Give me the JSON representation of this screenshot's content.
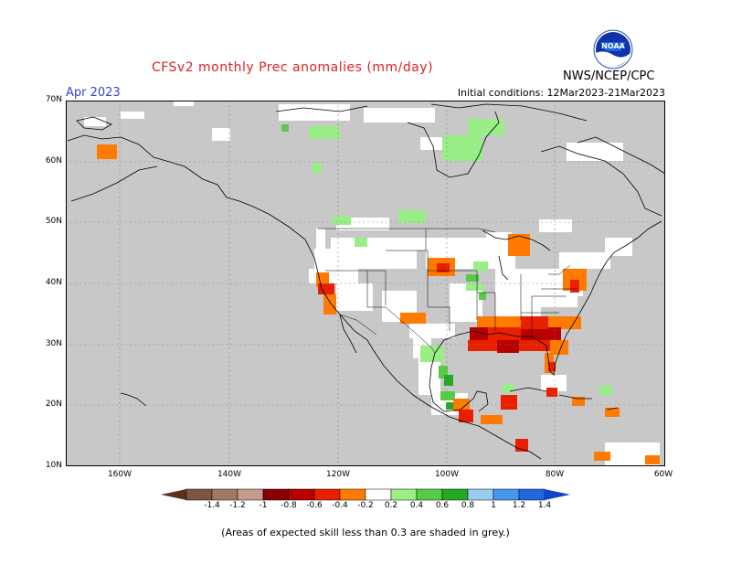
{
  "header": {
    "title": "CFSv2 monthly Prec anomalies (mm/day)",
    "month": "Apr 2023",
    "initial_conditions": "Initial conditions: 12Mar2023-21Mar2023",
    "agency": "NWS/NCEP/CPC",
    "logo_text": "NOAA"
  },
  "axes": {
    "lat_labels": [
      "70N",
      "60N",
      "50N",
      "40N",
      "30N",
      "20N",
      "10N"
    ],
    "lon_labels": [
      "160W",
      "140W",
      "120W",
      "100W",
      "80W",
      "60W"
    ]
  },
  "colorbar": {
    "labels": [
      "-1.4",
      "-1.2",
      "-1",
      "-0.8",
      "-0.6",
      "-0.4",
      "-0.2",
      "0.2",
      "0.4",
      "0.6",
      "0.8",
      "1",
      "1.2",
      "1.4"
    ],
    "colors": [
      "#7f5541",
      "#a07866",
      "#c49a8c",
      "#8a0000",
      "#b80000",
      "#e82000",
      "#ff7a00",
      "#ffffff",
      "#99ee88",
      "#55cc44",
      "#22aa22",
      "#99ccee",
      "#4499ee",
      "#2266dd"
    ]
  },
  "footer": {
    "note": "(Areas of expected skill less than 0.3 are shaded in grey.)"
  },
  "map_colors": {
    "skill_mask": "#c8c8c8",
    "land_line": "#000000",
    "grid_line": "#888888"
  }
}
